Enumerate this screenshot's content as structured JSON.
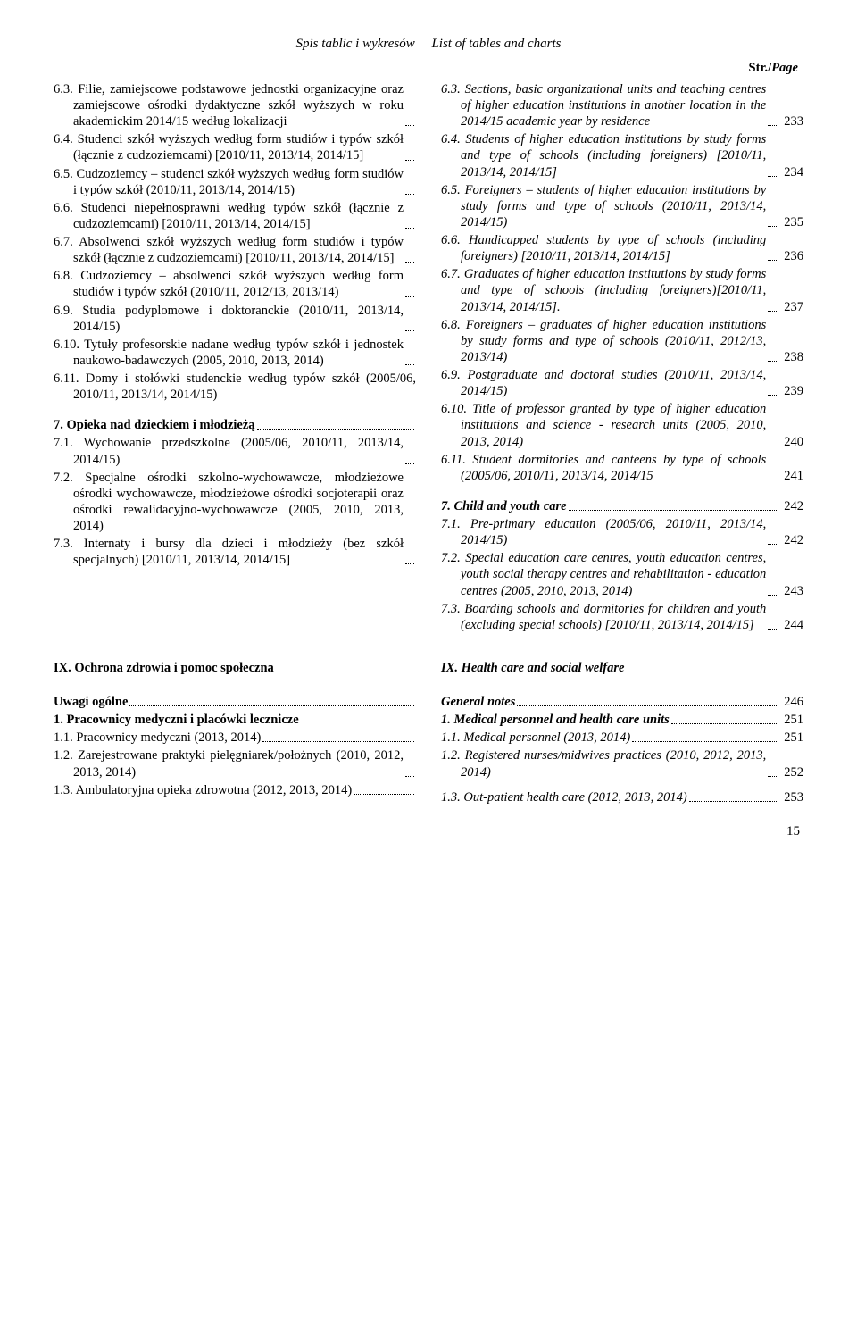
{
  "header": "Spis tablic i wykresów     List of tables and charts",
  "strPage": "Str./Page",
  "footerPage": "15",
  "leftCol": [
    {
      "text": "6.3. Filie, zamiejscowe podstawowe jednostki organizacyjne oraz zamiejscowe ośrodki dydaktyczne szkół wyższych w roku akademickim 2014/15 według lokalizacji",
      "page": "",
      "indent": true
    },
    {
      "text": "6.4. Studenci szkół wyższych według form studiów i typów szkół (łącznie z cudzoziemcami) [2010/11, 2013/14, 2014/15]",
      "page": "",
      "indent": true
    },
    {
      "text": "6.5. Cudzoziemcy – studenci szkół wyższych według form studiów i typów szkół (2010/11, 2013/14, 2014/15)",
      "page": "",
      "indent": true
    },
    {
      "text": "6.6. Studenci niepełnosprawni według typów szkół (łącznie z cudzoziemcami) [2010/11, 2013/14, 2014/15]",
      "page": "",
      "indent": true
    },
    {
      "text": "6.7. Absolwenci szkół wyższych według form studiów i typów szkół (łącznie z cudzoziemcami) [2010/11, 2013/14, 2014/15]",
      "page": "",
      "indent": true
    },
    {
      "text": "6.8. Cudzoziemcy – absolwenci szkół wyższych według form studiów i typów szkół (2010/11, 2012/13, 2013/14)",
      "page": "",
      "indent": true
    },
    {
      "text": "6.9. Studia podyplomowe i doktoranckie (2010/11, 2013/14, 2014/15)",
      "page": "",
      "indent": true
    },
    {
      "text": "6.10. Tytuły profesorskie nadane według typów szkół i jednostek naukowo-badawczych (2005, 2010, 2013, 2014)",
      "page": "",
      "indent": true
    },
    {
      "text": "6.11. Domy i stołówki studenckie według typów szkół (2005/06, 2010/11, 2013/14, 2014/15)",
      "page": "",
      "indent": true,
      "noleader": true
    },
    {
      "gap": true
    },
    {
      "text": "7. Opieka nad dzieckiem i młodzieżą",
      "page": "",
      "bold": true
    },
    {
      "text": "7.1. Wychowanie przedszkolne (2005/06, 2010/11, 2013/14, 2014/15)",
      "page": "",
      "indent": true
    },
    {
      "text": "7.2. Specjalne ośrodki szkolno-wychowawcze, młodzieżowe ośrodki wychowawcze, młodzieżowe ośrodki socjoterapii oraz ośrodki rewalidacyjno-wychowawcze (2005, 2010, 2013, 2014)",
      "page": "",
      "indent": true
    },
    {
      "text": "7.3. Internaty i bursy dla dzieci i młodzieży (bez szkół specjalnych) [2010/11, 2013/14, 2014/15]",
      "page": "",
      "indent": true
    }
  ],
  "rightCol": [
    {
      "text": "6.3. Sections, basic organizational units and teaching centres of higher education institutions in another location in the 2014/15 academic year by residence",
      "page": "233",
      "italic": true,
      "indent": true
    },
    {
      "text": "6.4. Students of higher education institutions by study forms and type of schools (including foreigners) [2010/11, 2013/14, 2014/15]",
      "page": "234",
      "italic": true,
      "indent": true
    },
    {
      "text": "6.5. Foreigners – students of higher education institutions by study forms and type of schools (2010/11, 2013/14, 2014/15)",
      "page": "235",
      "italic": true,
      "indent": true
    },
    {
      "text": "6.6. Handicapped students by type of schools (including foreigners) [2010/11, 2013/14, 2014/15]",
      "page": "236",
      "italic": true,
      "indent": true
    },
    {
      "text": "6.7. Graduates of higher education institutions by study forms and type of schools (including foreigners)[2010/11, 2013/14, 2014/15].",
      "page": "237",
      "italic": true,
      "indent": true
    },
    {
      "text": "6.8. Foreigners – graduates of higher education institutions by study forms and type of schools (2010/11, 2012/13, 2013/14)",
      "page": "238",
      "italic": true,
      "indent": true
    },
    {
      "text": "6.9. Postgraduate and doctoral studies (2010/11, 2013/14, 2014/15)",
      "page": "239",
      "italic": true,
      "indent": true
    },
    {
      "text": "6.10. Title of professor granted by type of higher education institutions and science - research units (2005, 2010, 2013, 2014)",
      "page": "240",
      "italic": true,
      "indent": true
    },
    {
      "text": "6.11. Student dormitories and canteens by type of schools (2005/06, 2010/11, 2013/14, 2014/15",
      "page": "241",
      "italic": true,
      "indent": true
    },
    {
      "gap": true
    },
    {
      "text": "7. Child and youth care",
      "page": "242",
      "italic": true,
      "bold": true
    },
    {
      "text": "7.1. Pre-primary education (2005/06, 2010/11, 2013/14, 2014/15)",
      "page": "242",
      "italic": true,
      "indent": true
    },
    {
      "text": "7.2. Special education care centres, youth education centres, youth social therapy centres and rehabilitation - education centres (2005, 2010, 2013, 2014)",
      "page": "243",
      "italic": true,
      "indent": true
    },
    {
      "text": "7.3. Boarding schools and dormitories for children and youth (excluding special schools) [2010/11, 2013/14, 2014/15]",
      "page": "244",
      "italic": true,
      "indent": true
    }
  ],
  "sectionIX": {
    "left": "IX. Ochrona zdrowia i pomoc społeczna",
    "right": "IX. Health care and social welfare"
  },
  "leftCol2": [
    {
      "text": "Uwagi ogólne",
      "page": "",
      "bold": true
    },
    {
      "text": "1. Pracownicy medyczni i placówki lecznicze",
      "page": "",
      "bold": true,
      "noleader": true
    },
    {
      "text": "1.1. Pracownicy medyczni (2013, 2014)",
      "page": "",
      "indent": true
    },
    {
      "text": "1.2. Zarejestrowane praktyki pielęgniarek/położnych (2010, 2012, 2013, 2014)",
      "page": "",
      "indent": true
    },
    {
      "text": "1.3. Ambulatoryjna opieka zdrowotna (2012, 2013, 2014)",
      "page": "",
      "indent": true
    }
  ],
  "rightCol2": [
    {
      "text": "General notes",
      "page": "246",
      "italic": true,
      "bold": true
    },
    {
      "text": "1. Medical personnel and health care units",
      "page": "251",
      "italic": true,
      "bold": true
    },
    {
      "text": "1.1. Medical personnel (2013, 2014)",
      "page": "251",
      "italic": true,
      "indent": true
    },
    {
      "text": "1.2. Registered nurses/midwives practices (2010, 2012, 2013, 2014)",
      "page": "252",
      "italic": true,
      "indent": true
    },
    {
      "gap": true,
      "small": true
    },
    {
      "text": "1.3. Out-patient health care (2012, 2013, 2014)",
      "page": "253",
      "italic": true,
      "indent": true
    }
  ]
}
